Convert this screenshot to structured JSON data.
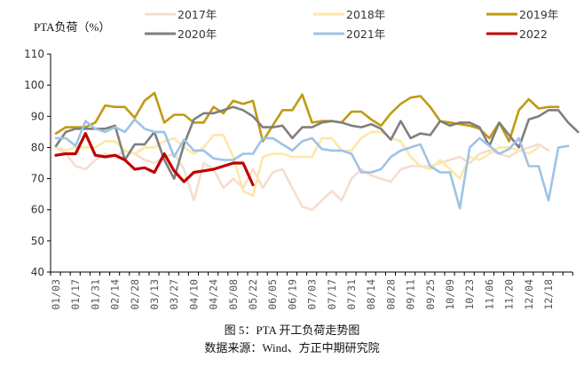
{
  "chart_data": {
    "type": "line",
    "title": "PTA负荷（%）",
    "caption": "图 5：PTA 开工负荷走势图",
    "source": "数据来源：Wind、方正中期研究院",
    "ylim": [
      40,
      110
    ],
    "yticks": [
      40,
      50,
      60,
      70,
      80,
      90,
      100,
      110
    ],
    "xticks": [
      "01/03",
      "01/17",
      "01/31",
      "02/14",
      "02/28",
      "03/13",
      "03/27",
      "04/10",
      "04/24",
      "05/08",
      "05/22",
      "06/05",
      "06/19",
      "07/03",
      "07/17",
      "07/31",
      "08/14",
      "08/28",
      "09/11",
      "09/25",
      "10/09",
      "10/23",
      "11/06",
      "11/20",
      "12/04",
      "12/18"
    ],
    "x_unit": "week",
    "legend_placement": "top",
    "series": [
      {
        "name": "2017年",
        "color": "#f5ddd0",
        "values": [
          80,
          78,
          74,
          73,
          76,
          78,
          77,
          79,
          78,
          76,
          75,
          77,
          78,
          73,
          63,
          75,
          73,
          67,
          70,
          67,
          73,
          67,
          72,
          73,
          67,
          61,
          60,
          63,
          66,
          63,
          70,
          73,
          71,
          70,
          69,
          73,
          74,
          74,
          74,
          75,
          76,
          77,
          75,
          78,
          79,
          78,
          77,
          79,
          80,
          81,
          79
        ]
      },
      {
        "name": "2018年",
        "color": "#fde8a8",
        "values": [
          80,
          79,
          80,
          80,
          80,
          82,
          82,
          79,
          78,
          80,
          80,
          82,
          83,
          80,
          78,
          80,
          84,
          84,
          77,
          66,
          64.5,
          77,
          78,
          78,
          77,
          77,
          77,
          83,
          83,
          79,
          79,
          83,
          85,
          85,
          83,
          82,
          77,
          74,
          73,
          76,
          73,
          70,
          77,
          76,
          78,
          80,
          80,
          79,
          78,
          80
        ]
      },
      {
        "name": "2019年",
        "color": "#c09a12",
        "values": [
          84.5,
          86.5,
          86.5,
          86.5,
          88,
          93.5,
          93,
          93,
          89.5,
          95,
          97.5,
          88,
          90.5,
          90.5,
          88,
          88,
          93,
          91,
          95,
          94,
          95,
          82,
          87,
          92,
          92,
          97,
          88,
          88.5,
          88.5,
          88,
          91.5,
          91.5,
          89,
          87,
          91,
          94,
          96,
          96.5,
          93,
          88.5,
          88,
          87.5,
          87,
          86,
          83,
          88,
          82,
          92,
          95.5,
          92.5,
          93,
          93
        ]
      },
      {
        "name": "2020年",
        "color": "#7f7f7f",
        "values": [
          80.5,
          85,
          86,
          86,
          86,
          86,
          87,
          76,
          81,
          81,
          85,
          76,
          70,
          81,
          89,
          91,
          91,
          92,
          93,
          92,
          90,
          86.5,
          86.5,
          87,
          83,
          86.5,
          86.5,
          88,
          88.5,
          88,
          87,
          86.5,
          87.5,
          86,
          82.5,
          88.5,
          83,
          84.5,
          84,
          88.5,
          87,
          88,
          88,
          86.5,
          80.5,
          88,
          84,
          80,
          89,
          90,
          92,
          92,
          88,
          85
        ]
      },
      {
        "name": "2021年",
        "color": "#9dc3e6",
        "values": [
          83,
          83,
          80.5,
          88.5,
          86,
          85,
          86.5,
          85,
          89,
          86,
          85,
          85,
          77,
          82.5,
          79,
          79,
          76.5,
          76,
          76,
          78,
          78,
          83,
          83,
          81,
          79,
          82,
          83,
          79.5,
          79,
          79,
          78,
          72,
          72,
          73,
          77,
          79,
          80,
          81,
          74,
          72,
          72,
          60.5,
          80,
          83,
          80.5,
          78,
          79.5,
          83,
          74,
          74,
          63,
          80,
          80.5
        ]
      },
      {
        "name": "2022",
        "color": "#c00000",
        "values": [
          77.5,
          78,
          78,
          84.5,
          77.5,
          77,
          77.5,
          76,
          73,
          73.5,
          72,
          78,
          72.5,
          69,
          72,
          72.5,
          73,
          74,
          75,
          75,
          68
        ]
      }
    ]
  }
}
